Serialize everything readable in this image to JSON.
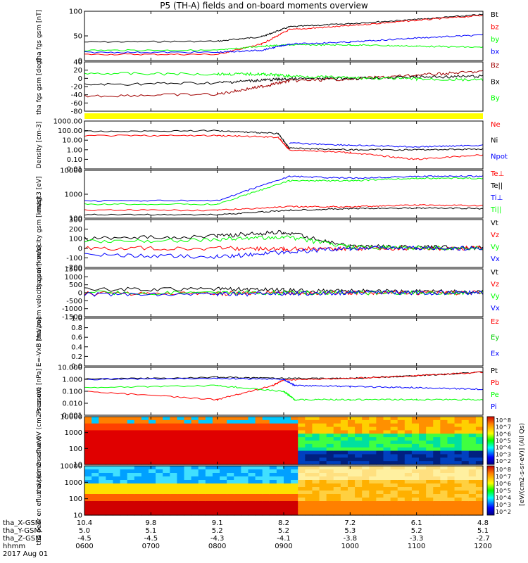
{
  "title": "P5 (TH-A) fields and on-board moments overview",
  "footer": {
    "date": "2017 Aug 01",
    "rows": [
      {
        "label": "tha_X-GSM",
        "values": [
          "10.4",
          "9.8",
          "9.1",
          "8.2",
          "7.2",
          "6.1",
          "4.8"
        ]
      },
      {
        "label": "tha_Y-GSM",
        "values": [
          "5.0",
          "5.1",
          "5.2",
          "5.2",
          "5.3",
          "5.2",
          "5.1"
        ]
      },
      {
        "label": "tha_Z-GSM",
        "values": [
          "-4.5",
          "-4.5",
          "-4.3",
          "-4.1",
          "-3.8",
          "-3.3",
          "-2.7"
        ]
      },
      {
        "label": "hhmm",
        "values": [
          "0600",
          "0700",
          "0800",
          "0900",
          "1000",
          "1100",
          "1200"
        ]
      }
    ]
  },
  "colors": {
    "black": "#000000",
    "red": "#ff0000",
    "green": "#00ff00",
    "blue": "#0000ff",
    "darkred": "#a00000",
    "yellow": "#ffff00"
  },
  "colorbar": {
    "ticks": [
      "10^8",
      "10^7",
      "10^6",
      "10^5",
      "10^4",
      "10^3",
      "10^2"
    ],
    "label": "[eV/(cm2-s-sr-eV)] (All Qs)"
  },
  "chart_data": [
    {
      "type": "line",
      "panel": "fgs_gsm_mag",
      "ylabel": "tha fgs gsm [nT]",
      "ylim": [
        -20,
        100
      ],
      "yticks": [
        "100",
        "50",
        "0"
      ],
      "legend": [
        "Bt",
        "bz",
        "by",
        "bx"
      ],
      "series": [
        {
          "name": "Bt",
          "color": "black",
          "x": [
            "0600",
            "0800",
            "0840",
            "0905",
            "1000",
            "1100",
            "1200"
          ],
          "values": [
            25,
            27,
            38,
            62,
            70,
            80,
            92
          ]
        },
        {
          "name": "bz",
          "color": "red",
          "x": [
            "0600",
            "0800",
            "0840",
            "0905",
            "1000",
            "1100",
            "1200"
          ],
          "values": [
            -5,
            -5,
            20,
            55,
            65,
            78,
            90
          ]
        },
        {
          "name": "by",
          "color": "green",
          "x": [
            "0600",
            "0800",
            "0840",
            "0905",
            "1000",
            "1100",
            "1200"
          ],
          "values": [
            5,
            5,
            15,
            18,
            18,
            15,
            12
          ]
        },
        {
          "name": "bx",
          "color": "blue",
          "x": [
            "0600",
            "0800",
            "0840",
            "0905",
            "1000",
            "1100",
            "1200"
          ],
          "values": [
            0,
            0,
            5,
            20,
            25,
            35,
            42
          ]
        }
      ]
    },
    {
      "type": "line",
      "panel": "fgs_gsm_angle",
      "ylabel": "tha fgs gsm [deg]",
      "ylim": [
        -90,
        40
      ],
      "yticks": [
        "40",
        "20",
        "0",
        "-20",
        "-40",
        "-60",
        "-80"
      ],
      "legend": [
        "Bz",
        "Bx",
        "By"
      ],
      "series": [
        {
          "name": "Bz",
          "color": "darkred",
          "x": [
            "0600",
            "0800",
            "0840",
            "0905",
            "1000",
            "1100",
            "1200"
          ],
          "values": [
            -50,
            -45,
            -25,
            -10,
            -5,
            5,
            15
          ]
        },
        {
          "name": "Bx",
          "color": "black",
          "x": [
            "0600",
            "0800",
            "0840",
            "0905",
            "1000",
            "1100",
            "1200"
          ],
          "values": [
            -20,
            -15,
            -8,
            -5,
            -3,
            0,
            2
          ]
        },
        {
          "name": "By",
          "color": "green",
          "x": [
            "0600",
            "0800",
            "0840",
            "0905",
            "1000",
            "1100",
            "1200"
          ],
          "values": [
            10,
            8,
            8,
            3,
            -2,
            -5,
            -8
          ]
        }
      ]
    },
    {
      "type": "line",
      "panel": "density",
      "ylabel": "Density [cm-3]",
      "yscale": "log",
      "ylim": [
        0.01,
        1000
      ],
      "yticks": [
        "1000.00",
        "100.00",
        "10.00",
        "1.00",
        "0.10",
        "0.01"
      ],
      "legend": [
        "Ne",
        "Ni",
        "Npot"
      ],
      "series": [
        {
          "name": "Ne",
          "color": "red",
          "x": [
            "0600",
            "0800",
            "0855",
            "0905",
            "1000",
            "1100",
            "1200"
          ],
          "values": [
            30,
            30,
            20,
            1,
            0.5,
            0.1,
            0.3
          ]
        },
        {
          "name": "Ni",
          "color": "black",
          "x": [
            "0600",
            "0800",
            "0855",
            "0905",
            "1000",
            "1100",
            "1200"
          ],
          "values": [
            80,
            100,
            50,
            1.5,
            1,
            1,
            1.2
          ]
        },
        {
          "name": "Npot",
          "color": "blue",
          "x": [
            "0905",
            "1000",
            "1100",
            "1200"
          ],
          "values": [
            5,
            3,
            2,
            3
          ]
        }
      ]
    },
    {
      "type": "line",
      "panel": "temperature",
      "ylabel": "magt3 [eV]",
      "yscale": "log",
      "ylim": [
        40,
        10000
      ],
      "yticks": [
        "10000",
        "1000",
        "100"
      ],
      "legend": [
        "Te⊥",
        "Te||",
        "Ti⊥",
        "Ti||"
      ],
      "series": [
        {
          "name": "Te⊥",
          "color": "red",
          "x": [
            "0600",
            "0800",
            "0905",
            "1000",
            "1100",
            "1200"
          ],
          "values": [
            100,
            100,
            150,
            150,
            180,
            170
          ]
        },
        {
          "name": "Te||",
          "color": "black",
          "x": [
            "0600",
            "0800",
            "0905",
            "1000",
            "1100",
            "1200"
          ],
          "values": [
            60,
            60,
            100,
            120,
            130,
            120
          ]
        },
        {
          "name": "Ti⊥",
          "color": "blue",
          "x": [
            "0600",
            "0800",
            "0905",
            "1000",
            "1100",
            "1200"
          ],
          "values": [
            300,
            300,
            5000,
            4000,
            5000,
            5000
          ]
        },
        {
          "name": "Ti||",
          "color": "green",
          "x": [
            "0600",
            "0800",
            "0905",
            "1000",
            "1100",
            "1200"
          ],
          "values": [
            200,
            200,
            3000,
            3000,
            4000,
            4000
          ]
        }
      ]
    },
    {
      "type": "line",
      "panel": "peim_velocity",
      "ylabel": "tha peim velocity gsm [km/s]",
      "ylim": [
        -200,
        300
      ],
      "yticks": [
        "300",
        "200",
        "100",
        "0",
        "-100",
        "-200"
      ],
      "legend": [
        "Vt",
        "Vz",
        "Vy",
        "Vx"
      ],
      "series": [
        {
          "name": "Vt",
          "color": "black",
          "x": [
            "0600",
            "0800",
            "0900",
            "1000",
            "1100",
            "1200"
          ],
          "values": [
            100,
            130,
            170,
            20,
            10,
            5
          ]
        },
        {
          "name": "Vz",
          "color": "red",
          "x": [
            "0600",
            "0800",
            "0900",
            "1000",
            "1100",
            "1200"
          ],
          "values": [
            0,
            0,
            -10,
            0,
            0,
            0
          ]
        },
        {
          "name": "Vy",
          "color": "green",
          "x": [
            "0600",
            "0800",
            "0900",
            "1000",
            "1100",
            "1200"
          ],
          "values": [
            70,
            90,
            120,
            10,
            5,
            0
          ]
        },
        {
          "name": "Vx",
          "color": "blue",
          "x": [
            "0600",
            "0800",
            "0900",
            "1000",
            "1100",
            "1200"
          ],
          "values": [
            -70,
            -90,
            -40,
            0,
            0,
            0
          ]
        }
      ]
    },
    {
      "type": "line",
      "panel": "peem_velocity",
      "ylabel": "tha peem velocity gsm [km/s]",
      "ylim": [
        -1500,
        1500
      ],
      "yticks": [
        "1500",
        "1000",
        "500",
        "0",
        "-500",
        "-1000",
        "-1500"
      ],
      "legend": [
        "Vt",
        "Vz",
        "Vy",
        "Vx"
      ],
      "series": [
        {
          "name": "Vt",
          "color": "black",
          "x": [
            "0600",
            "0800",
            "0900",
            "1000",
            "1100",
            "1200"
          ],
          "values": [
            200,
            250,
            150,
            100,
            80,
            60
          ]
        },
        {
          "name": "Vz",
          "color": "red",
          "x": [
            "0600",
            "0800",
            "0900",
            "1000",
            "1100",
            "1200"
          ],
          "values": [
            -50,
            -50,
            -20,
            0,
            0,
            0
          ]
        },
        {
          "name": "Vy",
          "color": "green",
          "x": [
            "0600",
            "0800",
            "0900",
            "1000",
            "1100",
            "1200"
          ],
          "values": [
            0,
            0,
            0,
            0,
            0,
            0
          ]
        },
        {
          "name": "Vx",
          "color": "blue",
          "x": [
            "0600",
            "0800",
            "0900",
            "1000",
            "1100",
            "1200"
          ],
          "values": [
            -100,
            -100,
            -50,
            0,
            0,
            0
          ]
        }
      ]
    },
    {
      "type": "line",
      "panel": "efield",
      "ylabel": "E=-VxB [mV/m]",
      "ylim": [
        0,
        1
      ],
      "yticks": [
        "1.0",
        "0.8",
        "0.6",
        "0.4",
        "0.2",
        "0.0"
      ],
      "legend": [
        "Ez",
        "Ey",
        "Ex"
      ],
      "series": []
    },
    {
      "type": "line",
      "panel": "pressure",
      "ylabel": "Pressure [nPa]",
      "yscale": "log",
      "ylim": [
        0.001,
        10
      ],
      "yticks": [
        "10.000",
        "1.000",
        "0.100",
        "0.010",
        "0.001"
      ],
      "legend": [
        "Pt",
        "Pb",
        "Pe",
        "Pi"
      ],
      "series": [
        {
          "name": "Pt",
          "color": "black",
          "x": [
            "0600",
            "0800",
            "0900",
            "1000",
            "1100",
            "1200"
          ],
          "values": [
            1,
            1.5,
            1.2,
            1.2,
            2,
            4
          ]
        },
        {
          "name": "Pb",
          "color": "red",
          "x": [
            "0600",
            "0800",
            "0850",
            "0900",
            "1000",
            "1100",
            "1200"
          ],
          "values": [
            0.1,
            0.02,
            0.3,
            0.9,
            1.2,
            2,
            4
          ]
        },
        {
          "name": "Pe",
          "color": "green",
          "x": [
            "0600",
            "0800",
            "0900",
            "0910",
            "1000",
            "1100",
            "1200"
          ],
          "values": [
            0.2,
            0.3,
            0.1,
            0.02,
            0.02,
            0.02,
            0.02
          ]
        },
        {
          "name": "Pi",
          "color": "blue",
          "x": [
            "0600",
            "0800",
            "0900",
            "0910",
            "1000",
            "1100",
            "1200"
          ],
          "values": [
            1,
            1.2,
            1,
            0.3,
            0.25,
            0.2,
            0.15
          ]
        }
      ]
    },
    {
      "type": "heatmap",
      "panel": "peir_spectrogram",
      "ylabel": "tha peir en eflux eV (cm2-s-sr-eV)",
      "yscale": "log",
      "ylim": [
        6,
        20000
      ],
      "yticks": [
        "10000",
        "1000",
        "100",
        "10"
      ]
    },
    {
      "type": "heatmap",
      "panel": "peer_spectrogram",
      "ylabel": "tha peer en eflux eV (cm2-s-sr-eV)",
      "yscale": "log",
      "ylim": [
        6,
        20000
      ],
      "yticks": [
        "10000",
        "1000",
        "100",
        "10"
      ]
    }
  ]
}
